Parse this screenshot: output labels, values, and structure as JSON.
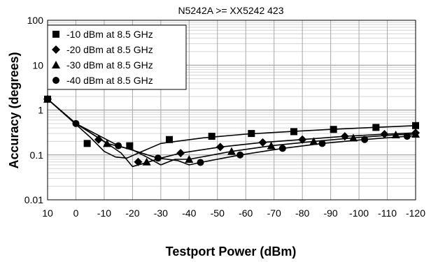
{
  "chart_data": {
    "type": "line",
    "title": "N5242A >= XX5242 423",
    "xlabel": "Testport Power (dBm)",
    "ylabel": "Accuracy (degrees)",
    "x_axis": {
      "min": 10,
      "max": -120,
      "reversed": true,
      "ticks": [
        10,
        0,
        -10,
        -20,
        -30,
        -40,
        -50,
        -60,
        -70,
        -80,
        -90,
        -100,
        -110,
        -120
      ],
      "tick_labels": [
        "10",
        "0",
        "-10",
        "-20",
        "-30",
        "-40",
        "-50",
        "-60",
        "-70",
        "-80",
        "-90",
        "-100",
        "-110",
        "-120"
      ]
    },
    "y_axis": {
      "scale": "log",
      "min": 0.01,
      "max": 100,
      "ticks": [
        0.01,
        0.1,
        1,
        10,
        100
      ],
      "tick_labels": [
        "0.01",
        "0.1",
        "1",
        "10",
        "100"
      ]
    },
    "grid": {
      "major_horizontal": true,
      "minor_horizontal": true,
      "vertical": true
    },
    "legend_position": "top-left",
    "series": [
      {
        "name": "-10 dBm at 8.5 GHz",
        "marker": "square",
        "points": [
          [
            10,
            1.75
          ],
          [
            -4,
            0.18
          ],
          [
            -19,
            0.16
          ],
          [
            -33,
            0.22
          ],
          [
            -48,
            0.26
          ],
          [
            -62,
            0.3
          ],
          [
            -77,
            0.33
          ],
          [
            -91,
            0.37
          ],
          [
            -106,
            0.41
          ],
          [
            -120,
            0.45
          ]
        ],
        "curve": [
          [
            10,
            1.75
          ],
          [
            0,
            0.48
          ],
          [
            -5,
            0.25
          ],
          [
            -10,
            0.12
          ],
          [
            -14,
            0.09
          ],
          [
            -18,
            0.085
          ],
          [
            -22,
            0.11
          ],
          [
            -30,
            0.18
          ],
          [
            -45,
            0.24
          ],
          [
            -60,
            0.29
          ],
          [
            -75,
            0.33
          ],
          [
            -90,
            0.37
          ],
          [
            -105,
            0.41
          ],
          [
            -120,
            0.45
          ]
        ]
      },
      {
        "name": "-20 dBm at 8.5 GHz",
        "marker": "diamond",
        "points": [
          [
            10,
            1.75
          ],
          [
            -8,
            0.22
          ],
          [
            -22,
            0.07
          ],
          [
            -37,
            0.11
          ],
          [
            -51,
            0.15
          ],
          [
            -66,
            0.19
          ],
          [
            -80,
            0.22
          ],
          [
            -95,
            0.26
          ],
          [
            -109,
            0.29
          ],
          [
            -120,
            0.31
          ]
        ],
        "curve": [
          [
            10,
            1.75
          ],
          [
            0,
            0.5
          ],
          [
            -10,
            0.2
          ],
          [
            -16,
            0.11
          ],
          [
            -20,
            0.055
          ],
          [
            -24,
            0.065
          ],
          [
            -30,
            0.085
          ],
          [
            -37,
            0.11
          ],
          [
            -51,
            0.15
          ],
          [
            -66,
            0.19
          ],
          [
            -80,
            0.22
          ],
          [
            -95,
            0.26
          ],
          [
            -109,
            0.29
          ],
          [
            -120,
            0.31
          ]
        ]
      },
      {
        "name": "-30 dBm at 8.5 GHz",
        "marker": "triangle",
        "points": [
          [
            10,
            1.75
          ],
          [
            -11,
            0.18
          ],
          [
            -25,
            0.07
          ],
          [
            -40,
            0.08
          ],
          [
            -55,
            0.12
          ],
          [
            -69,
            0.16
          ],
          [
            -84,
            0.2
          ],
          [
            -98,
            0.24
          ],
          [
            -113,
            0.28
          ],
          [
            -120,
            0.29
          ]
        ],
        "curve": [
          [
            10,
            1.75
          ],
          [
            0,
            0.5
          ],
          [
            -11,
            0.18
          ],
          [
            -20,
            0.13
          ],
          [
            -25,
            0.09
          ],
          [
            -30,
            0.06
          ],
          [
            -35,
            0.08
          ],
          [
            -40,
            0.08
          ],
          [
            -55,
            0.12
          ],
          [
            -69,
            0.16
          ],
          [
            -84,
            0.2
          ],
          [
            -98,
            0.24
          ],
          [
            -113,
            0.28
          ],
          [
            -120,
            0.29
          ]
        ]
      },
      {
        "name": "-40 dBm at 8.5 GHz",
        "marker": "circle",
        "points": [
          [
            10,
            1.75
          ],
          [
            0,
            0.5
          ],
          [
            -15,
            0.16
          ],
          [
            -29,
            0.085
          ],
          [
            -44,
            0.068
          ],
          [
            -58,
            0.1
          ],
          [
            -73,
            0.14
          ],
          [
            -87,
            0.18
          ],
          [
            -102,
            0.22
          ],
          [
            -117,
            0.26
          ]
        ],
        "curve": [
          [
            10,
            1.75
          ],
          [
            0,
            0.5
          ],
          [
            -15,
            0.16
          ],
          [
            -29,
            0.085
          ],
          [
            -36,
            0.075
          ],
          [
            -40,
            0.06
          ],
          [
            -44,
            0.068
          ],
          [
            -58,
            0.1
          ],
          [
            -73,
            0.14
          ],
          [
            -87,
            0.18
          ],
          [
            -102,
            0.22
          ],
          [
            -117,
            0.26
          ],
          [
            -120,
            0.27
          ]
        ]
      }
    ]
  }
}
